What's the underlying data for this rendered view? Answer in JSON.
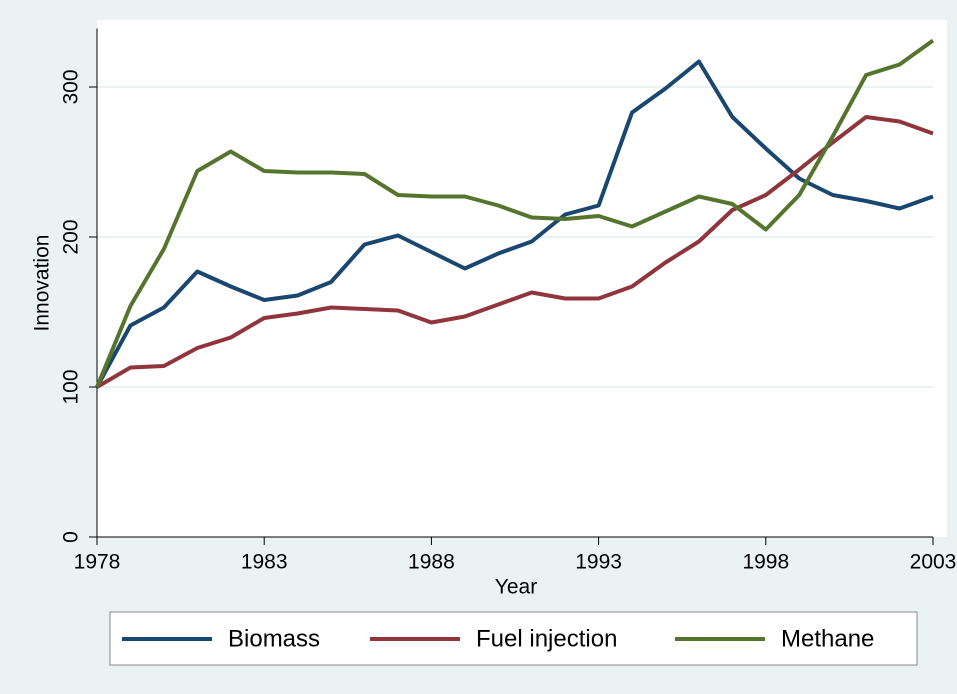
{
  "chart_data": {
    "type": "line",
    "x_label": "Year",
    "y_label": "Innovation",
    "x": [
      1978,
      1979,
      1980,
      1981,
      1982,
      1983,
      1984,
      1985,
      1986,
      1987,
      1988,
      1989,
      1990,
      1991,
      1992,
      1993,
      1994,
      1995,
      1996,
      1997,
      1998,
      1999,
      2000,
      2001,
      2002,
      2003
    ],
    "series": [
      {
        "name": "Biomass",
        "color": "#1a476f",
        "values": [
          100,
          141,
          153,
          177,
          167,
          158,
          161,
          170,
          195,
          201,
          190,
          179,
          189,
          197,
          215,
          221,
          283,
          299,
          317,
          280,
          259,
          239,
          228,
          224,
          219,
          227
        ]
      },
      {
        "name": "Fuel injection",
        "color": "#90353b",
        "values": [
          100,
          113,
          114,
          126,
          133,
          146,
          149,
          153,
          152,
          151,
          143,
          147,
          155,
          163,
          159,
          159,
          167,
          183,
          197,
          218,
          228,
          245,
          263,
          280,
          277,
          269
        ]
      },
      {
        "name": "Methane",
        "color": "#55752f",
        "values": [
          100,
          154,
          192,
          244,
          257,
          244,
          243,
          243,
          242,
          228,
          227,
          227,
          221,
          213,
          212,
          214,
          207,
          217,
          227,
          222,
          205,
          228,
          267,
          308,
          315,
          331
        ]
      }
    ],
    "xlim": [
      1978,
      2003
    ],
    "xticks": [
      1978,
      1983,
      1988,
      1993,
      1998,
      2003
    ],
    "ylim": [
      0,
      339
    ],
    "yticks": [
      0,
      100,
      200,
      300
    ],
    "grid": true,
    "legend": "bottom"
  }
}
